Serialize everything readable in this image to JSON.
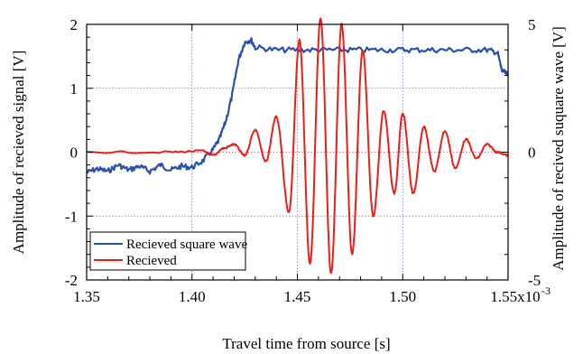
{
  "chart_data": {
    "type": "line",
    "xlabel": "Travel time from source [s]",
    "xlim": [
      0.00135,
      0.00155
    ],
    "x_ticks": [
      0.00135,
      0.0014,
      0.00145,
      0.0015,
      0.00155
    ],
    "x_tick_labels": [
      "1.35",
      "1.40",
      "1.45",
      "1.50",
      "1.55x10"
    ],
    "x_multiplier_exponent": "-3",
    "ylabel_left": "Amplitude of recieved signal [V]",
    "ylim_left": [
      -2,
      2
    ],
    "y_ticks_left": [
      -2,
      -1,
      0,
      1,
      2
    ],
    "y_tick_labels_left": [
      "-2",
      "-1",
      "0",
      "1",
      "2"
    ],
    "ylabel_right": "Amplitude of recived suquare wave [V]",
    "ylim_right": [
      -5,
      5
    ],
    "y_ticks_right": [
      -5,
      0,
      5
    ],
    "y_tick_labels_right": [
      "-5",
      "0",
      "5"
    ],
    "grid": true,
    "legend_position": "bottom-left",
    "series": [
      {
        "name": "Recieved square wave",
        "axis": "right",
        "color": "#2a4fb0",
        "x": [
          0.00135,
          0.001355,
          0.00136,
          0.001365,
          0.00137,
          0.001375,
          0.00138,
          0.001385,
          0.00139,
          0.001395,
          0.0014,
          0.001405,
          0.00141,
          0.001413,
          0.001416,
          0.001419,
          0.001422,
          0.001425,
          0.001428,
          0.00143,
          0.00144,
          0.00145,
          0.00146,
          0.00147,
          0.00148,
          0.00149,
          0.0015,
          0.00151,
          0.00152,
          0.00153,
          0.00154,
          0.001545,
          0.001547,
          0.00155
        ],
        "y": [
          -0.8,
          -0.65,
          -0.75,
          -0.5,
          -0.7,
          -0.55,
          -0.75,
          -0.5,
          -0.7,
          -0.55,
          -0.6,
          -0.35,
          0.1,
          0.5,
          1.2,
          2.2,
          3.6,
          4.3,
          4.4,
          4.1,
          4.0,
          4.0,
          4.0,
          4.0,
          4.0,
          4.0,
          4.0,
          4.0,
          4.0,
          4.0,
          4.0,
          3.9,
          3.2,
          3.0
        ]
      },
      {
        "name": "Recieved",
        "axis": "left",
        "color": "#e8201a",
        "x": [
          0.00135,
          0.00139,
          0.001405,
          0.00141,
          0.001415,
          0.00142,
          0.001425,
          0.00143,
          0.001435,
          0.00144,
          0.001446,
          0.001451,
          0.001456,
          0.001461,
          0.001466,
          0.001471,
          0.001476,
          0.001481,
          0.001486,
          0.001491,
          0.001496,
          0.0015,
          0.001505,
          0.00151,
          0.001515,
          0.00152,
          0.001525,
          0.00153,
          0.001535,
          0.00154,
          0.001545,
          0.00155
        ],
        "y": [
          0.0,
          0.0,
          0.02,
          -0.05,
          0.06,
          0.12,
          -0.05,
          0.35,
          -0.15,
          0.55,
          -0.95,
          1.75,
          -1.75,
          2.1,
          -1.9,
          2.0,
          -1.6,
          1.6,
          -1.0,
          0.65,
          -0.65,
          0.6,
          -0.65,
          0.4,
          -0.3,
          0.33,
          -0.25,
          0.2,
          -0.1,
          0.12,
          0.0,
          -0.05
        ]
      }
    ]
  }
}
